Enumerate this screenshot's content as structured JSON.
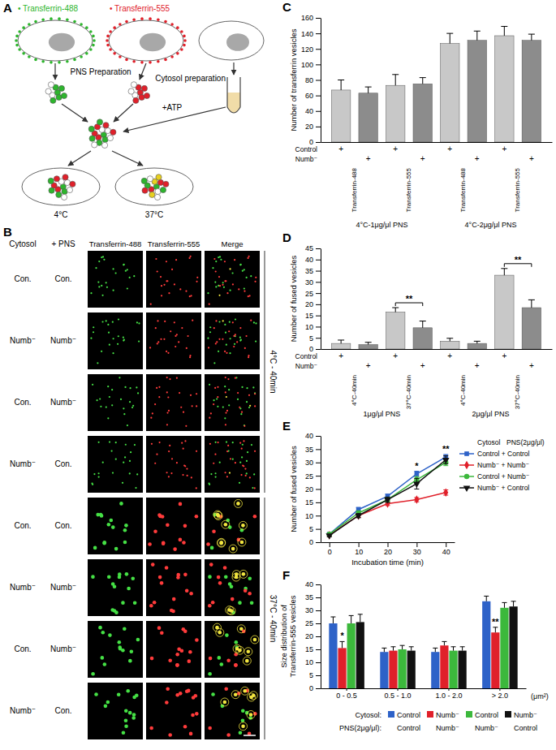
{
  "diagram": {
    "panel_label": "A",
    "tf488": "• Transferrin-488",
    "tf555": "• Transferrin-555",
    "pns": "PNS Preparation",
    "cytosol": "Cytosol preparation",
    "atp": "+ATP",
    "cold": "4°C",
    "warm": "37°C"
  },
  "images": {
    "panel_label": "B",
    "row_headers": [
      "Cytosol",
      "+ PNS"
    ],
    "column_headers": [
      "Transferrin-488",
      "Transferrin-555",
      "Merge"
    ],
    "rows": [
      [
        "Con.",
        "Con."
      ],
      [
        "Numb⁻",
        "Numb⁻"
      ],
      [
        "Con.",
        "Numb⁻"
      ],
      [
        "Numb⁻",
        "Con."
      ],
      [
        "Con.",
        "Con."
      ],
      [
        "Numb⁻",
        "Numb⁻"
      ],
      [
        "Con.",
        "Numb⁻"
      ],
      [
        "Numb⁻",
        "Con."
      ]
    ],
    "conditions": [
      {
        "label": "4°C - 40min",
        "first_row": 0,
        "last_row": 3
      },
      {
        "label": "37°C - 40min",
        "first_row": 4,
        "last_row": 7
      }
    ]
  },
  "chart_data": [
    {
      "type": "bar",
      "panel_label": "C",
      "ylabel": "Number of transferrin vesicles",
      "categories": [
        null,
        null,
        null,
        null,
        null,
        null,
        null,
        null
      ],
      "values": [
        67,
        63,
        73,
        75,
        127,
        131,
        137,
        131
      ],
      "errors": [
        13,
        8,
        14,
        8,
        13,
        12,
        12,
        8
      ],
      "colors": [
        "#c8c8c8",
        "#8c8c8c",
        "#c8c8c8",
        "#8c8c8c",
        "#c8c8c8",
        "#8c8c8c",
        "#c8c8c8",
        "#8c8c8c"
      ],
      "ylim": [
        0,
        160
      ],
      "yticks": [
        0,
        20,
        40,
        60,
        80,
        100,
        120,
        140,
        160
      ],
      "condition_rows": [
        {
          "label": "Control",
          "marks": [
            "+",
            null,
            "+",
            null,
            "+",
            null,
            "+",
            null
          ]
        },
        {
          "label": "Numb⁻",
          "marks": [
            null,
            "+",
            null,
            "+",
            null,
            "+",
            null,
            "+"
          ]
        }
      ],
      "subgroups": [
        {
          "label": "Transferrin-488",
          "first": 0,
          "last": 1
        },
        {
          "label": "Transferrin-555",
          "first": 2,
          "last": 3
        },
        {
          "label": "Transferrin-488",
          "first": 4,
          "last": 5
        },
        {
          "label": "Transferrin-555",
          "first": 6,
          "last": 7
        }
      ],
      "groups": [
        {
          "label": "4°C-1μg/μl PNS",
          "first": 0,
          "last": 3
        },
        {
          "label": "4°C-2μg/μl PNS",
          "first": 4,
          "last": 7
        }
      ]
    },
    {
      "type": "bar",
      "panel_label": "D",
      "ylabel": "Number of fused vesicles",
      "categories": [
        null,
        null,
        null,
        null,
        null,
        null,
        null,
        null
      ],
      "values": [
        2.5,
        2,
        16.5,
        9.5,
        3.5,
        2.5,
        33,
        18.5
      ],
      "errors": [
        1.5,
        1,
        2,
        3,
        1.3,
        1,
        3,
        3.5
      ],
      "colors": [
        "#c8c8c8",
        "#8c8c8c",
        "#c8c8c8",
        "#8c8c8c",
        "#c8c8c8",
        "#8c8c8c",
        "#c8c8c8",
        "#8c8c8c"
      ],
      "ylim": [
        0,
        45
      ],
      "yticks": [
        0,
        5,
        10,
        15,
        20,
        25,
        30,
        35,
        40,
        45
      ],
      "condition_rows": [
        {
          "label": "Control",
          "marks": [
            "+",
            null,
            "+",
            null,
            "+",
            null,
            "+",
            null
          ]
        },
        {
          "label": "Numb⁻",
          "marks": [
            null,
            "+",
            null,
            "+",
            null,
            "+",
            null,
            "+"
          ]
        }
      ],
      "subgroups": [
        {
          "label": "4°C-40min",
          "first": 0,
          "last": 1
        },
        {
          "label": "37°C-40min",
          "first": 2,
          "last": 3
        },
        {
          "label": "4°C-40min",
          "first": 4,
          "last": 5
        },
        {
          "label": "37°C-40min",
          "first": 6,
          "last": 7
        }
      ],
      "groups": [
        {
          "label": "1μg/μl PNS",
          "first": 0,
          "last": 3
        },
        {
          "label": "2μg/μl PNS",
          "first": 4,
          "last": 7
        }
      ],
      "significance": [
        {
          "text": "**",
          "first": 2,
          "last": 3
        },
        {
          "text": "**",
          "first": 6,
          "last": 7
        }
      ]
    },
    {
      "type": "line",
      "panel_label": "E",
      "xlabel": "Incubation time (min)",
      "ylabel": "Number of fused vesicles",
      "x": [
        0,
        10,
        20,
        30,
        40
      ],
      "xlim": [
        -3,
        43
      ],
      "xticks": [
        0,
        10,
        20,
        30,
        40
      ],
      "ylim": [
        0,
        40
      ],
      "yticks": [
        0,
        5,
        10,
        15,
        20,
        25,
        30,
        35,
        40
      ],
      "legend": "right",
      "legend_title": [
        "Cytosol",
        "PNS(2μg/μl)"
      ],
      "series": [
        {
          "name": "Control + Control",
          "color": "#2e62c8",
          "marker": "square",
          "values": [
            3,
            12.3,
            17.3,
            25.7,
            32
          ],
          "errors": [
            0.5,
            0.8,
            0.8,
            1,
            1
          ]
        },
        {
          "name": "Numb⁻ + Numb⁻",
          "color": "#e0202a",
          "marker": "diamond",
          "values": [
            2.7,
            10,
            14.5,
            16,
            18.7
          ],
          "errors": [
            0.5,
            0.7,
            0.7,
            0.8,
            1
          ]
        },
        {
          "name": "Control + Numb⁻",
          "color": "#3cb83c",
          "marker": "circle",
          "values": [
            3,
            11,
            16,
            23.5,
            30
          ],
          "errors": [
            0.5,
            0.8,
            0.9,
            1.2,
            1.2
          ]
        },
        {
          "name": "Numb⁻ + Control",
          "color": "#111111",
          "marker": "triangle-down",
          "values": [
            2.5,
            10,
            16,
            22,
            31
          ],
          "errors": [
            0.5,
            0.8,
            1,
            2,
            1.5
          ]
        }
      ],
      "annotations": [
        {
          "text": "*",
          "x": 30
        },
        {
          "text": "**",
          "x": 40
        }
      ]
    },
    {
      "type": "bar",
      "panel_label": "F",
      "ylabel": [
        "Size distribution of",
        "Transferrin-555 vesicles"
      ],
      "xlabel": "(μm²)",
      "categories": [
        "0 - 0.5",
        "0.5 - 1.0",
        "1.0 - 2.0",
        "> 2.0"
      ],
      "ylim": [
        0,
        40
      ],
      "yticks": [
        0,
        5,
        10,
        15,
        20,
        25,
        30,
        35,
        40
      ],
      "legend": "bottom",
      "legend_titles": [
        "Cytosol:",
        "PNS(2μg/μl):"
      ],
      "series": [
        {
          "cytosol": "Control",
          "pns": "Control",
          "color": "#2e62c8",
          "values": [
            25,
            14,
            14,
            33.5
          ],
          "errors": [
            2.5,
            1.5,
            1.5,
            2
          ]
        },
        {
          "cytosol": "Numb⁻",
          "pns": "Numb⁻",
          "color": "#e0202a",
          "values": [
            15.5,
            14.5,
            16.5,
            21.5
          ],
          "errors": [
            2.5,
            1.5,
            1.5,
            2
          ]
        },
        {
          "cytosol": "Control",
          "pns": "Numb⁻",
          "color": "#3cb83c",
          "values": [
            25,
            15,
            14.5,
            31
          ],
          "errors": [
            3,
            1.5,
            1.5,
            2
          ]
        },
        {
          "cytosol": "Numb⁻",
          "pns": "Control",
          "color": "#111111",
          "values": [
            25.5,
            14.5,
            14.5,
            31.5
          ],
          "errors": [
            3,
            1.5,
            1.5,
            2
          ]
        }
      ],
      "annotations": [
        {
          "text": "*",
          "category": 0,
          "series": 1
        },
        {
          "text": "**",
          "category": 3,
          "series": 1
        }
      ]
    }
  ]
}
